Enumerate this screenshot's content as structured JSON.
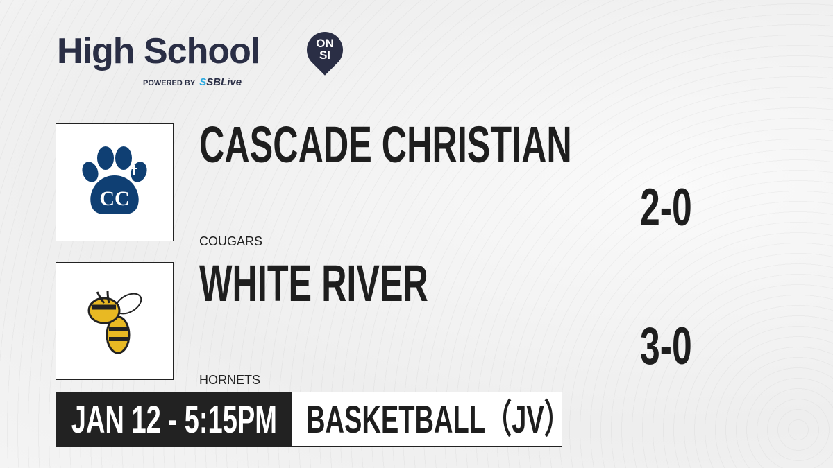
{
  "brand": {
    "title": "High School",
    "badge_top": "ON",
    "badge_bottom": "SI",
    "powered_by": "POWERED BY",
    "partner": "SBLive",
    "partner_color": "#29a9e1",
    "brand_color": "#2a2e45"
  },
  "teams": [
    {
      "name": "CASCADE CHRISTIAN",
      "mascot": "COUGARS",
      "record": "2-0",
      "logo_icon": "paw-cc-icon",
      "logo_color": "#0f3f73"
    },
    {
      "name": "WHITE RIVER",
      "mascot": "HORNETS",
      "record": "3-0",
      "logo_icon": "hornet-icon",
      "logo_color": "#e8b923"
    }
  ],
  "game": {
    "datetime": "JAN 12 - 5:15PM",
    "sport": "BASKETBALL（JV）"
  }
}
